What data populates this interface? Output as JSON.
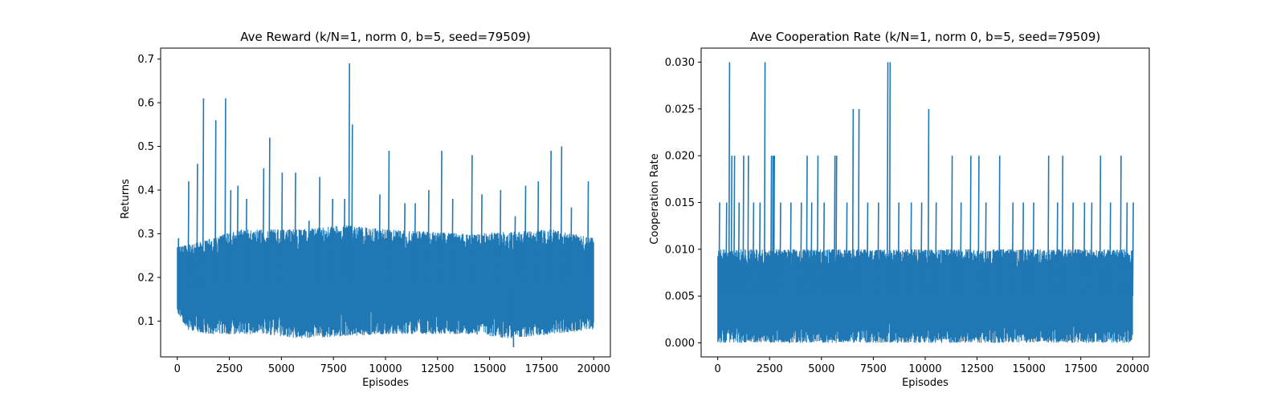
{
  "chart_data": [
    {
      "type": "line",
      "title": "Ave Reward (k/N=1, norm 0, b=5, seed=79509)",
      "xlabel": "Episodes",
      "ylabel": "Returns",
      "xlim": [
        -800,
        20800
      ],
      "ylim": [
        0.018,
        0.725
      ],
      "xticks": [
        0,
        2500,
        5000,
        7500,
        10000,
        12500,
        15000,
        17500,
        20000
      ],
      "xtick_labels": [
        "0",
        "2500",
        "5000",
        "7500",
        "10000",
        "12500",
        "15000",
        "17500",
        "20000"
      ],
      "yticks": [
        0.1,
        0.2,
        0.3,
        0.4,
        0.5,
        0.6,
        0.7
      ],
      "ytick_labels": [
        "0.1",
        "0.2",
        "0.3",
        "0.4",
        "0.5",
        "0.6",
        "0.7"
      ],
      "grid": false,
      "color": "#1f77b4",
      "series": [
        {
          "description": "noisy per-episode average reward, 20000 episodes; band mostly 0.08–0.30 with spikes",
          "x_range": [
            0,
            20000
          ],
          "band_low": [
            [
              0,
              0.12
            ],
            [
              500,
              0.08
            ],
            [
              1500,
              0.07
            ],
            [
              4000,
              0.07
            ],
            [
              6000,
              0.06
            ],
            [
              10000,
              0.07
            ],
            [
              14000,
              0.07
            ],
            [
              16000,
              0.06
            ],
            [
              20000,
              0.08
            ]
          ],
          "band_high": [
            [
              0,
              0.27
            ],
            [
              1000,
              0.28
            ],
            [
              3000,
              0.31
            ],
            [
              6000,
              0.31
            ],
            [
              8000,
              0.32
            ],
            [
              10000,
              0.31
            ],
            [
              14000,
              0.3
            ],
            [
              18000,
              0.31
            ],
            [
              20000,
              0.29
            ]
          ],
          "spikes": [
            [
              30,
              0.29
            ],
            [
              520,
              0.42
            ],
            [
              940,
              0.46
            ],
            [
              1230,
              0.61
            ],
            [
              1820,
              0.56
            ],
            [
              2290,
              0.61
            ],
            [
              2540,
              0.4
            ],
            [
              2880,
              0.41
            ],
            [
              3300,
              0.38
            ],
            [
              4120,
              0.45
            ],
            [
              4410,
              0.52
            ],
            [
              5010,
              0.44
            ],
            [
              5650,
              0.44
            ],
            [
              6300,
              0.33
            ],
            [
              6810,
              0.43
            ],
            [
              7430,
              0.38
            ],
            [
              8010,
              0.38
            ],
            [
              8240,
              0.69
            ],
            [
              8380,
              0.55
            ],
            [
              9700,
              0.39
            ],
            [
              10140,
              0.49
            ],
            [
              10900,
              0.37
            ],
            [
              11400,
              0.37
            ],
            [
              12050,
              0.4
            ],
            [
              12670,
              0.49
            ],
            [
              13200,
              0.38
            ],
            [
              14130,
              0.48
            ],
            [
              14600,
              0.39
            ],
            [
              15500,
              0.4
            ],
            [
              16200,
              0.34
            ],
            [
              16700,
              0.41
            ],
            [
              17310,
              0.42
            ],
            [
              17920,
              0.49
            ],
            [
              18430,
              0.5
            ],
            [
              18900,
              0.36
            ],
            [
              19710,
              0.42
            ],
            [
              16120,
              0.04
            ]
          ]
        }
      ]
    },
    {
      "type": "line",
      "title": "Ave Cooperation Rate (k/N=1, norm 0, b=5, seed=79509)",
      "xlabel": "Episodes",
      "ylabel": "Cooperation Rate",
      "xlim": [
        -800,
        20800
      ],
      "ylim": [
        -0.0015,
        0.0315
      ],
      "xticks": [
        0,
        2500,
        5000,
        7500,
        10000,
        12500,
        15000,
        17500,
        20000
      ],
      "xtick_labels": [
        "0",
        "2500",
        "5000",
        "7500",
        "10000",
        "12500",
        "15000",
        "17500",
        "20000"
      ],
      "yticks": [
        0.0,
        0.005,
        0.01,
        0.015,
        0.02,
        0.025,
        0.03
      ],
      "ytick_labels": [
        "0.000",
        "0.005",
        "0.010",
        "0.015",
        "0.020",
        "0.025",
        "0.030"
      ],
      "grid": false,
      "color": "#1f77b4",
      "series": [
        {
          "description": "per-episode average cooperation rate, 20000 episodes; dense band 0–0.010 with spikes to 0.015–0.030",
          "x_range": [
            0,
            20000
          ],
          "band_low": [
            [
              0,
              0.0
            ],
            [
              20000,
              0.0
            ]
          ],
          "band_high": [
            [
              0,
              0.01
            ],
            [
              20000,
              0.01
            ]
          ],
          "spikes": [
            [
              60,
              0.015
            ],
            [
              400,
              0.015
            ],
            [
              540,
              0.03
            ],
            [
              650,
              0.02
            ],
            [
              780,
              0.02
            ],
            [
              1000,
              0.015
            ],
            [
              1220,
              0.02
            ],
            [
              1450,
              0.02
            ],
            [
              1700,
              0.015
            ],
            [
              2010,
              0.015
            ],
            [
              2250,
              0.03
            ],
            [
              2560,
              0.02
            ],
            [
              2640,
              0.02
            ],
            [
              2700,
              0.02
            ],
            [
              3000,
              0.015
            ],
            [
              3500,
              0.015
            ],
            [
              4000,
              0.015
            ],
            [
              4280,
              0.02
            ],
            [
              4500,
              0.015
            ],
            [
              4800,
              0.02
            ],
            [
              5100,
              0.015
            ],
            [
              5620,
              0.02
            ],
            [
              5700,
              0.02
            ],
            [
              6200,
              0.015
            ],
            [
              6500,
              0.025
            ],
            [
              6780,
              0.025
            ],
            [
              7200,
              0.015
            ],
            [
              7720,
              0.015
            ],
            [
              8170,
              0.03
            ],
            [
              8280,
              0.03
            ],
            [
              8700,
              0.015
            ],
            [
              9300,
              0.015
            ],
            [
              9800,
              0.015
            ],
            [
              10140,
              0.025
            ],
            [
              10500,
              0.015
            ],
            [
              11270,
              0.02
            ],
            [
              11700,
              0.015
            ],
            [
              12170,
              0.02
            ],
            [
              12560,
              0.02
            ],
            [
              12900,
              0.015
            ],
            [
              13560,
              0.02
            ],
            [
              14200,
              0.015
            ],
            [
              14700,
              0.015
            ],
            [
              15200,
              0.015
            ],
            [
              15920,
              0.02
            ],
            [
              16350,
              0.015
            ],
            [
              16600,
              0.02
            ],
            [
              17100,
              0.015
            ],
            [
              17650,
              0.015
            ],
            [
              18000,
              0.015
            ],
            [
              18420,
              0.02
            ],
            [
              18900,
              0.015
            ],
            [
              19410,
              0.02
            ],
            [
              19700,
              0.015
            ],
            [
              20000,
              0.015
            ]
          ]
        }
      ]
    }
  ]
}
